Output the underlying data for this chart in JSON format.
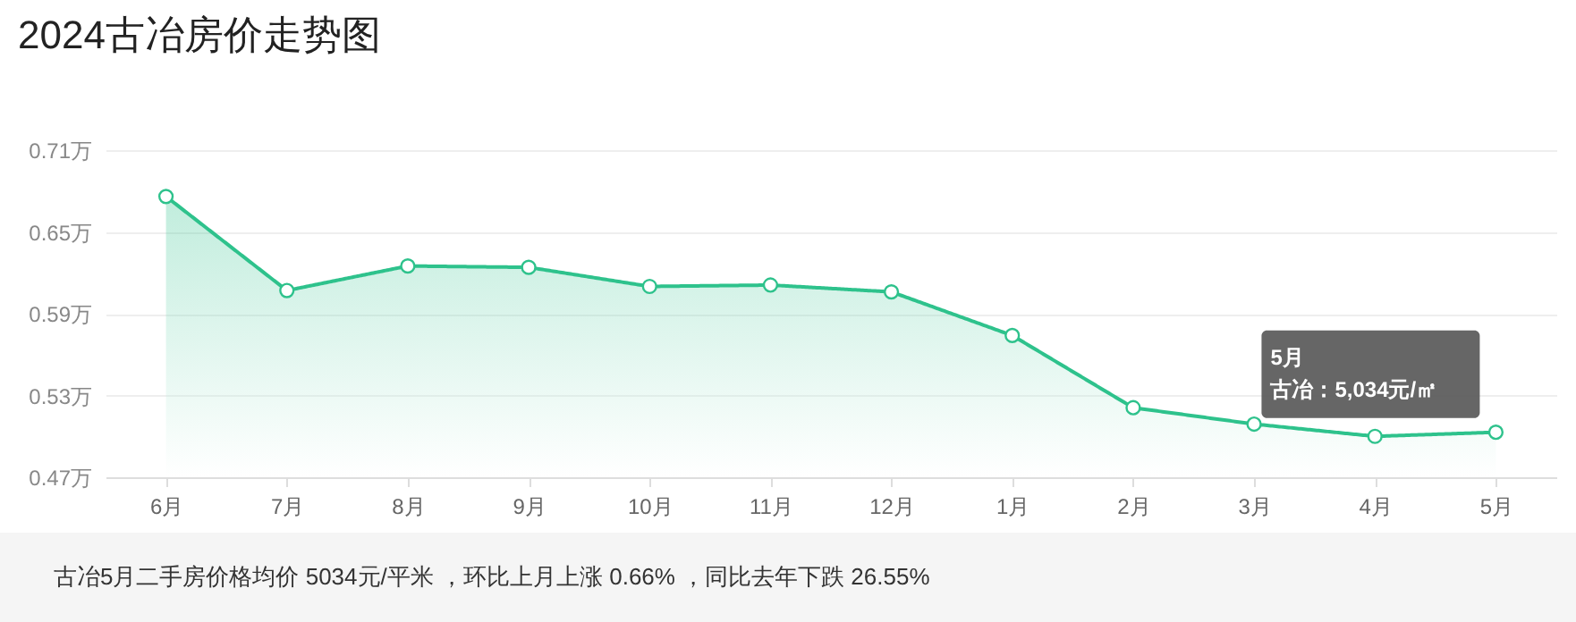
{
  "chart_data": {
    "type": "area",
    "title": "2024古冶房价走势图",
    "categories": [
      "6月",
      "7月",
      "8月",
      "9月",
      "10月",
      "11月",
      "12月",
      "1月",
      "2月",
      "3月",
      "4月",
      "5月"
    ],
    "series": [
      {
        "color": "#2ec28c",
        "values": [
          0.676,
          0.607,
          0.625,
          0.624,
          0.61,
          0.611,
          0.606,
          0.574,
          0.521,
          0.509,
          0.5,
          0.503
        ]
      }
    ],
    "ylim": [
      0.47,
      0.71
    ],
    "yticks": [
      {
        "value": 0.47,
        "label": "0.47万"
      },
      {
        "value": 0.53,
        "label": "0.53万"
      },
      {
        "value": 0.59,
        "label": "0.59万"
      },
      {
        "value": 0.65,
        "label": "0.65万"
      },
      {
        "value": 0.71,
        "label": "0.71万"
      }
    ],
    "grid": "y",
    "marker": "circle",
    "legend": false,
    "annotations": [
      "5月",
      "古冶：5,034元/㎡",
      "古冶5月二手房价格均价 5034元/平米 ，环比上月上涨 0.66% ，同比去年下跌 26.55%"
    ]
  }
}
